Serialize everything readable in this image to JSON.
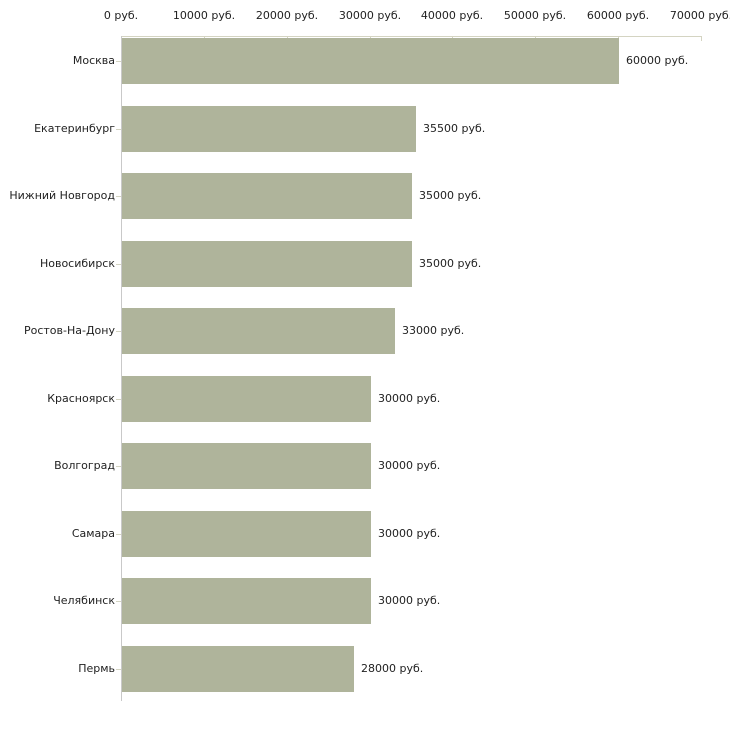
{
  "chart_data": {
    "type": "bar",
    "orientation": "horizontal",
    "title": "",
    "xlabel": "",
    "ylabel": "",
    "unit": "руб.",
    "categories": [
      "Москва",
      "Екатеринбург",
      "Нижний Новгород",
      "Новосибирск",
      "Ростов-На-Дону",
      "Красноярск",
      "Волгоград",
      "Самара",
      "Челябинск",
      "Пермь"
    ],
    "values": [
      60000,
      35500,
      35000,
      35000,
      33000,
      30000,
      30000,
      30000,
      30000,
      28000
    ],
    "value_labels": [
      "60000 руб.",
      "35500 руб.",
      "35000 руб.",
      "35000 руб.",
      "33000 руб.",
      "30000 руб.",
      "30000 руб.",
      "30000 руб.",
      "30000 руб.",
      "28000 руб."
    ],
    "x_ticks": [
      0,
      10000,
      20000,
      30000,
      40000,
      50000,
      60000,
      70000
    ],
    "x_tick_labels": [
      "0 руб.",
      "10000 руб.",
      "20000 руб.",
      "30000 руб.",
      "40000 руб.",
      "50000 руб.",
      "60000 руб.",
      "70000 руб."
    ],
    "xlim": [
      0,
      70000
    ],
    "grid": false,
    "legend": false,
    "colors": {
      "bar": "#afb49b",
      "axis": "#d4d4c2",
      "y_axis_line": "#c9c9c9",
      "text": "#222222"
    }
  }
}
